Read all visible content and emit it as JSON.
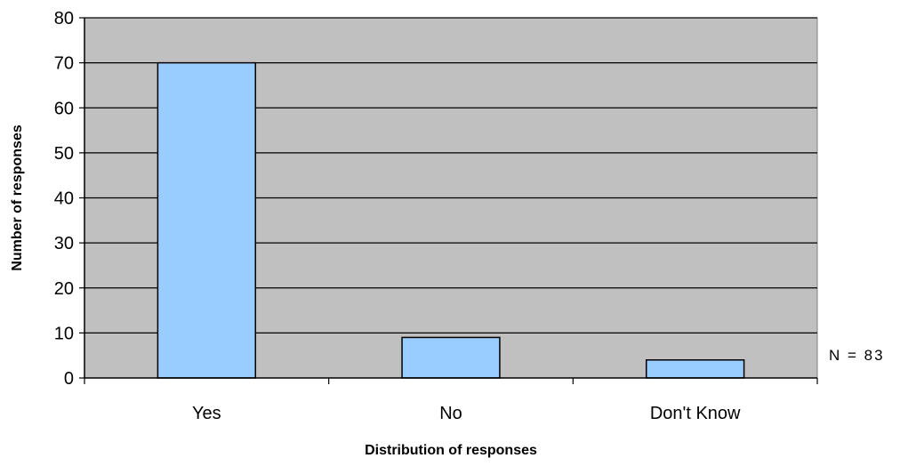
{
  "chart_data": {
    "type": "bar",
    "categories": [
      "Yes",
      "No",
      "Don't Know"
    ],
    "values": [
      70,
      9,
      4
    ],
    "title": "",
    "xlabel": "Distribution of responses",
    "ylabel": "Number of responses",
    "ylim": [
      0,
      80
    ],
    "yticks": [
      0,
      10,
      20,
      30,
      40,
      50,
      60,
      70,
      80
    ],
    "grid": true,
    "legend": "none",
    "annotation": "N = 83",
    "colors": {
      "plot_background": "#c0c0c0",
      "bar_fill": "#99ccff",
      "bar_stroke": "#000000",
      "gridline": "#000000"
    }
  }
}
